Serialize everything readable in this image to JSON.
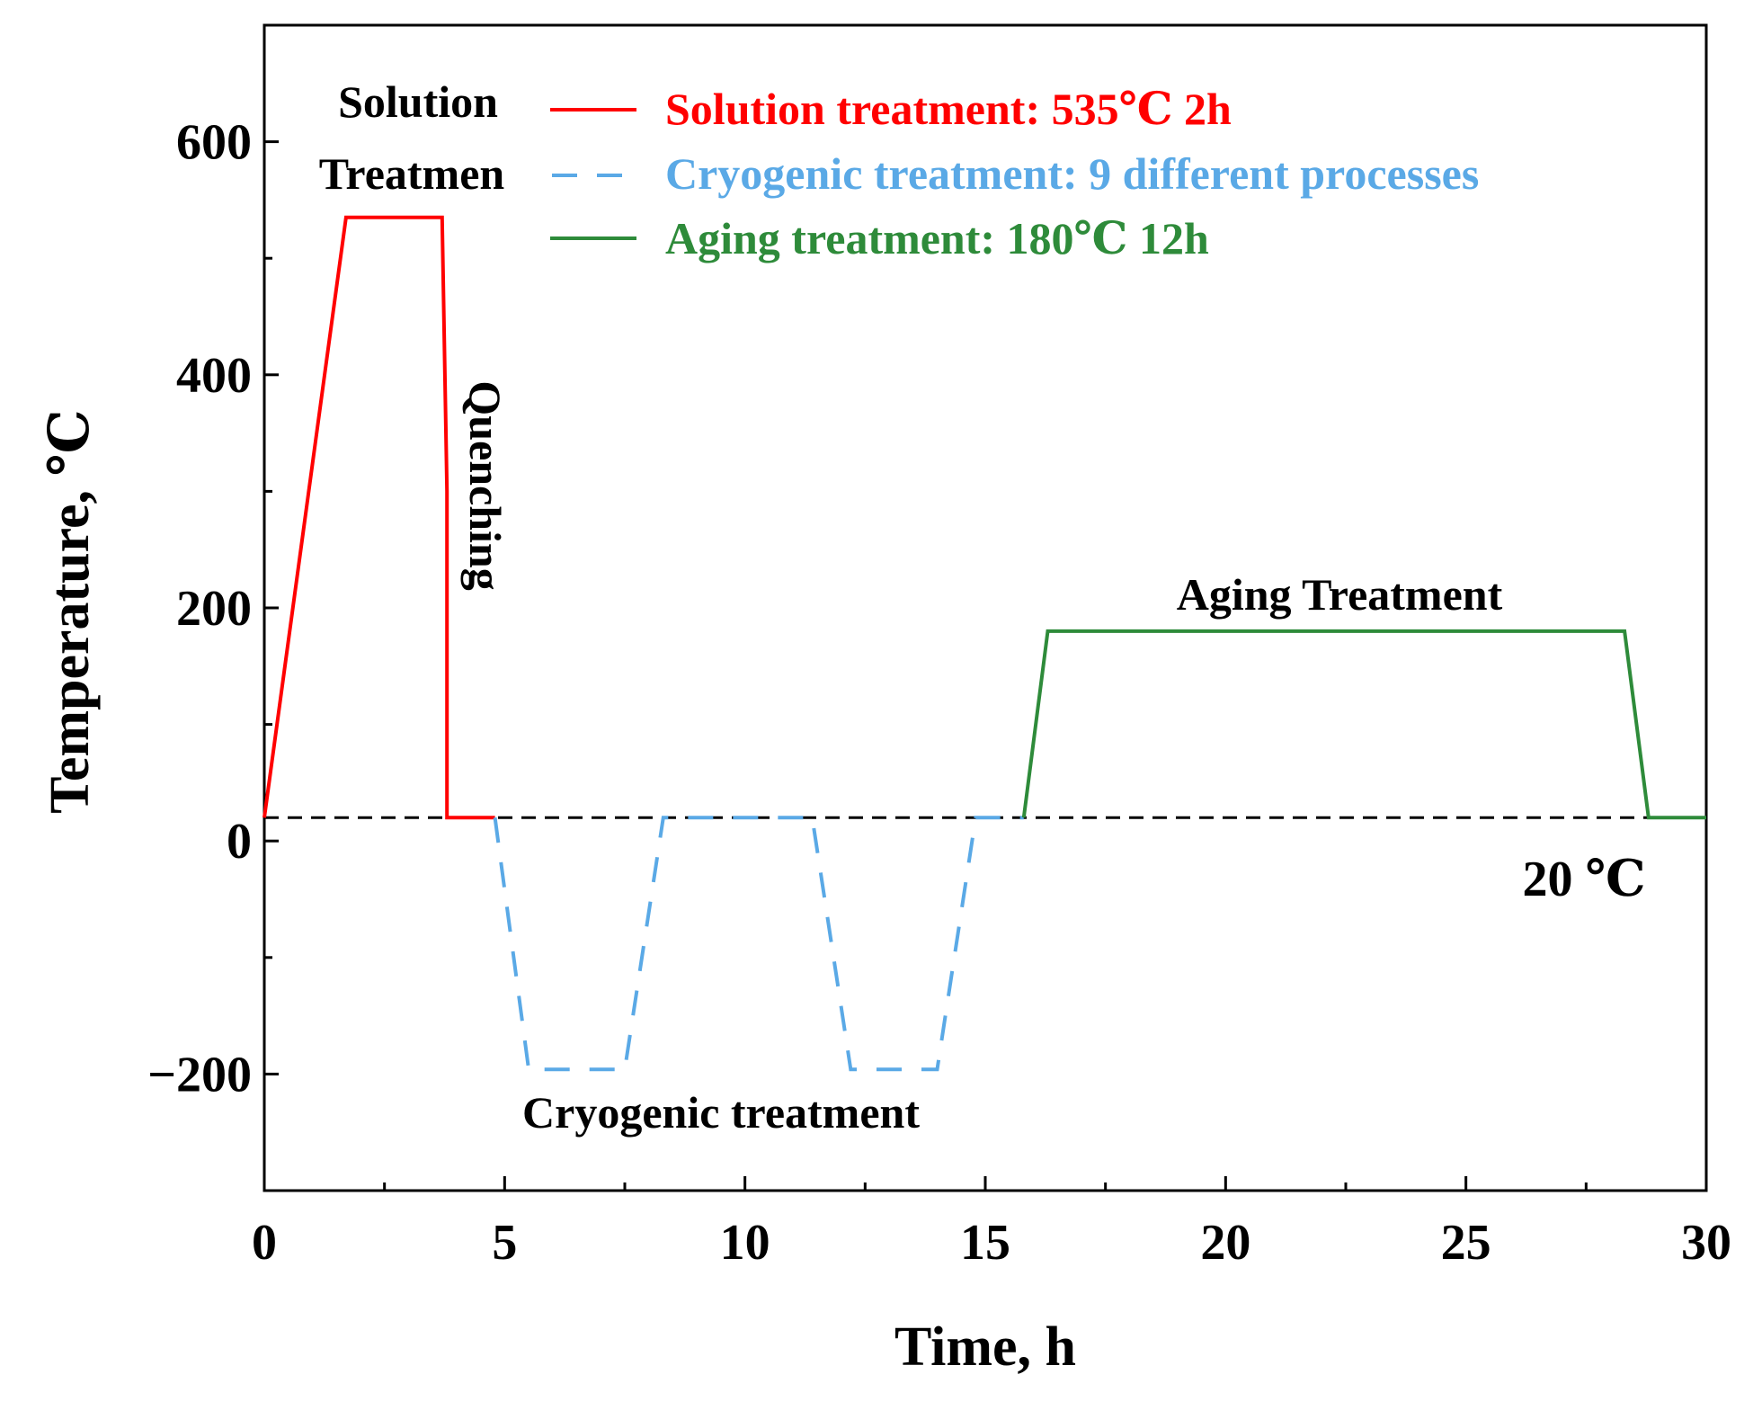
{
  "chart_data": {
    "type": "line",
    "title": "",
    "xlabel": "Time, h",
    "ylabel": "Temperature, ℃",
    "xlim": [
      0,
      30
    ],
    "ylim": [
      -300,
      700
    ],
    "x_ticks": [
      0,
      5,
      10,
      15,
      20,
      25,
      30
    ],
    "y_ticks": [
      -200,
      0,
      200,
      400,
      600
    ],
    "x_tick_labels": [
      "0",
      "5",
      "10",
      "15",
      "20",
      "25",
      "30"
    ],
    "y_tick_labels": [
      "−200",
      "0",
      "200",
      "400",
      "600"
    ],
    "grid": false,
    "legend_position": "top-left",
    "series": [
      {
        "name": "Solution treatment: 535℃  2h",
        "style": "solid",
        "color": "#ff0000",
        "x": [
          0,
          1.7,
          3.7,
          3.8,
          3.8,
          4.8
        ],
        "y": [
          20,
          535,
          535,
          300,
          20,
          20
        ]
      },
      {
        "name": "Cryogenic treatment: 9 different processes",
        "style": "dashed",
        "color": "#5aa9e6",
        "x": [
          4.8,
          5.5,
          7.5,
          8.3,
          11.4,
          12.2,
          14.0,
          14.8,
          15.8
        ],
        "y": [
          20,
          -196,
          -196,
          20,
          20,
          -196,
          -196,
          20,
          20
        ]
      },
      {
        "name": "Aging treatment: 180℃  12h",
        "style": "solid",
        "color": "#2e8b3a",
        "x": [
          15.8,
          16.3,
          28.3,
          28.8,
          30
        ],
        "y": [
          20,
          180,
          180,
          20,
          20
        ]
      }
    ],
    "reference_line": {
      "y": 20,
      "style": "dashed",
      "color": "#000000",
      "label": "20 ℃"
    },
    "annotations": {
      "solution_line1": "Solution",
      "solution_line2": "Treatmen",
      "quenching": "Quenching",
      "aging": "Aging Treatment",
      "cryogenic": "Cryogenic treatment"
    }
  }
}
